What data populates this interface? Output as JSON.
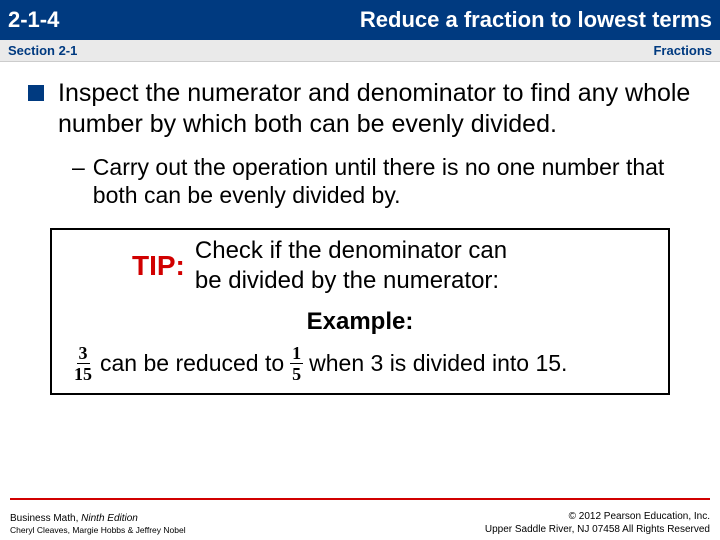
{
  "titlebar": {
    "left": "2-1-4",
    "right": "Reduce a fraction to lowest terms"
  },
  "subbar": {
    "left": "Section 2-1",
    "right": "Fractions"
  },
  "bullet": {
    "text": "Inspect the numerator and denominator to find any whole number by which both can be evenly divided."
  },
  "subbullet": {
    "dash": "–",
    "text": "Carry out the operation until there is no one number that both can be evenly divided by."
  },
  "tip": {
    "label": "TIP:",
    "line1": "Check if the denominator can",
    "line2": "be divided by the numerator:",
    "example_label": "Example:",
    "frac1": {
      "num": "3",
      "den": "15"
    },
    "middle_text": " can be reduced to ",
    "frac2": {
      "num": "1",
      "den": "5"
    },
    "end_text": " when 3 is divided into 15."
  },
  "footer": {
    "book_title_a": "Business Math, ",
    "book_title_b": "Ninth Edition",
    "authors": "Cheryl Cleaves, Margie Hobbs & Jeffrey Nobel",
    "copyright_a": "© 2012 Pearson Education, Inc.",
    "copyright_b": "Upper Saddle River, NJ 07458 All Rights Reserved"
  },
  "colors": {
    "brand_blue": "#003a80",
    "tip_red": "#d10000",
    "divider_red": "#d10000",
    "subbar_bg": "#eaeaea",
    "background": "#ffffff"
  }
}
